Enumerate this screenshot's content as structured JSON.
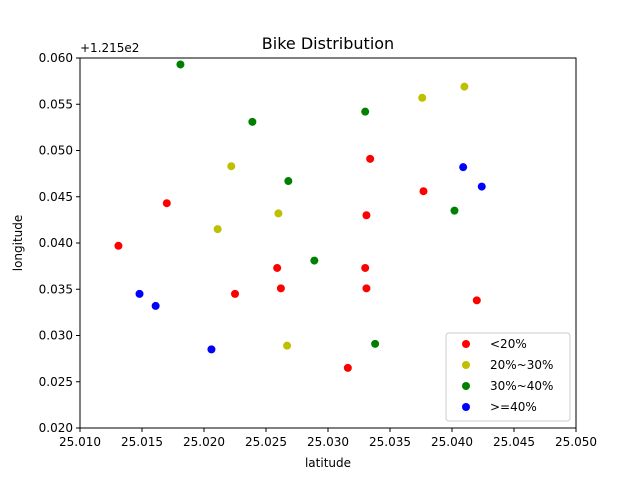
{
  "chart_data": {
    "type": "scatter",
    "title": "Bike Distribution",
    "xlabel": "latitude",
    "ylabel": "longitude",
    "offset_text": "+1.215e2",
    "xlim": [
      25.01,
      25.05
    ],
    "ylim": [
      0.02,
      0.06
    ],
    "xticks": [
      "25.010",
      "25.015",
      "25.020",
      "25.025",
      "25.030",
      "25.035",
      "25.040",
      "25.045",
      "25.050"
    ],
    "yticks": [
      "0.020",
      "0.025",
      "0.030",
      "0.035",
      "0.040",
      "0.045",
      "0.050",
      "0.055",
      "0.060"
    ],
    "grid": false,
    "legend": "lower-right",
    "series": [
      {
        "name": "<20%",
        "color": "#ff0000",
        "points": [
          [
            25.0131,
            0.0397
          ],
          [
            25.017,
            0.0443
          ],
          [
            25.0225,
            0.0345
          ],
          [
            25.0259,
            0.0373
          ],
          [
            25.0262,
            0.0351
          ],
          [
            25.0316,
            0.0265
          ],
          [
            25.033,
            0.0373
          ],
          [
            25.0331,
            0.0351
          ],
          [
            25.0331,
            0.043
          ],
          [
            25.0334,
            0.0491
          ],
          [
            25.0377,
            0.0456
          ],
          [
            25.042,
            0.0338
          ]
        ]
      },
      {
        "name": "20%~30%",
        "color": "#bfbf00",
        "points": [
          [
            25.0211,
            0.0415
          ],
          [
            25.0222,
            0.0483
          ],
          [
            25.026,
            0.0432
          ],
          [
            25.0267,
            0.0289
          ],
          [
            25.0376,
            0.0557
          ],
          [
            25.041,
            0.0569
          ]
        ]
      },
      {
        "name": "30%~40%",
        "color": "#008000",
        "points": [
          [
            25.0181,
            0.0593
          ],
          [
            25.0239,
            0.0531
          ],
          [
            25.0268,
            0.0467
          ],
          [
            25.0289,
            0.0381
          ],
          [
            25.033,
            0.0542
          ],
          [
            25.0338,
            0.0291
          ],
          [
            25.0402,
            0.0435
          ]
        ]
      },
      {
        "name": ">=40%",
        "color": "#0000ff",
        "points": [
          [
            25.0148,
            0.0345
          ],
          [
            25.0161,
            0.0332
          ],
          [
            25.0206,
            0.0285
          ],
          [
            25.0409,
            0.0482
          ],
          [
            25.0424,
            0.0461
          ]
        ]
      }
    ]
  }
}
